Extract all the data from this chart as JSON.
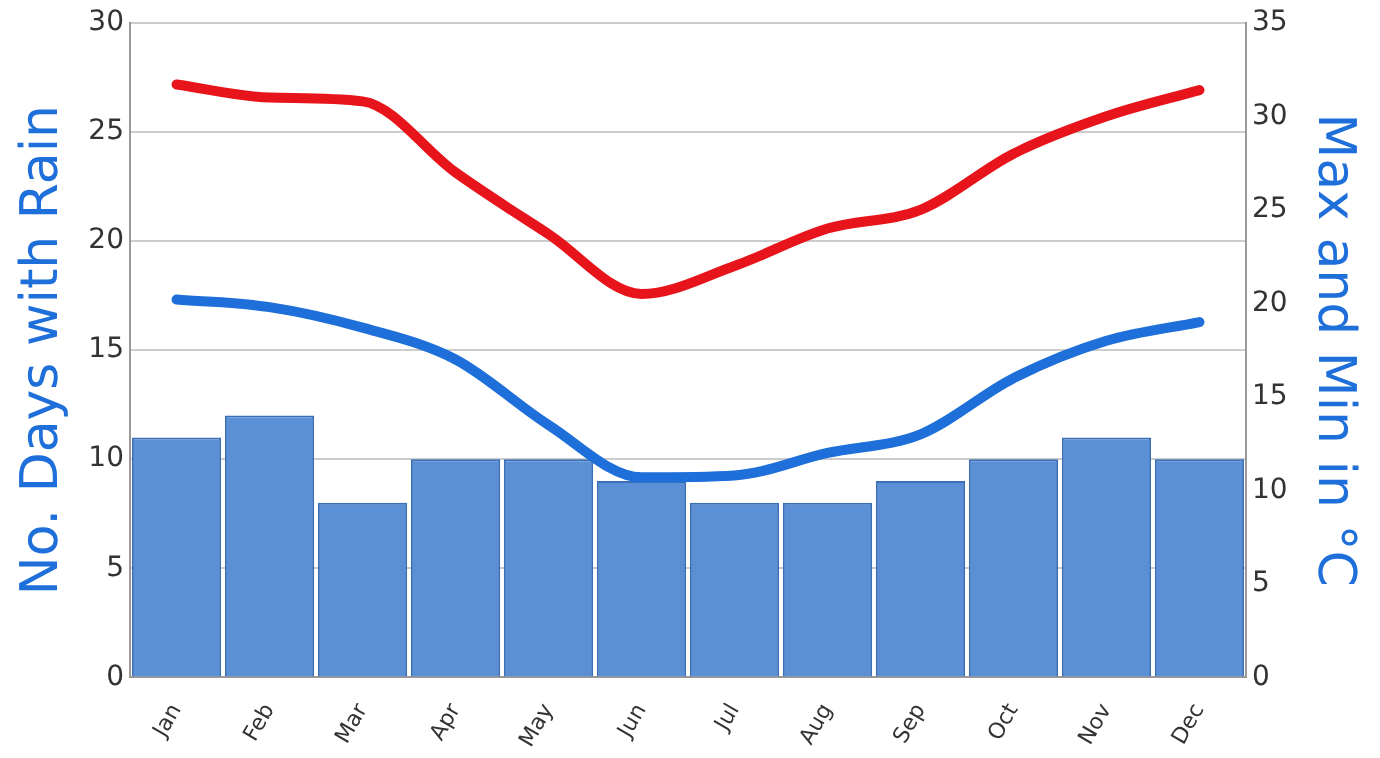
{
  "chart_data": {
    "type": "bar",
    "ylabel": "No. Days with Rain",
    "y2label": "Max and Min in °C",
    "categories": [
      "Jan",
      "Feb",
      "Mar",
      "Apr",
      "May",
      "Jun",
      "Jul",
      "Aug",
      "Sep",
      "Oct",
      "Nov",
      "Dec"
    ],
    "series": [
      {
        "color": "#5b8fd6",
        "values": [
          11,
          12,
          8,
          10,
          10,
          9,
          8,
          8,
          9,
          10,
          11,
          10
        ]
      },
      {
        "type": "line",
        "axis": "y2",
        "color": "#e8141b",
        "values": [
          31.7,
          31,
          30.8,
          27,
          23.7,
          20.5,
          22,
          24,
          25,
          28,
          30,
          31.4
        ]
      },
      {
        "type": "line",
        "axis": "y2",
        "color": "#1e6fd9",
        "values": [
          20.2,
          19.8,
          18.7,
          17,
          13.5,
          10.7,
          10.8,
          12,
          13,
          16,
          18,
          19
        ]
      }
    ],
    "ylim": [
      0,
      30
    ],
    "yticks": [
      0,
      5,
      10,
      15,
      20,
      25,
      30
    ],
    "y2lim": [
      0,
      35
    ],
    "y2ticks": [
      0,
      5,
      10,
      15,
      20,
      25,
      30,
      35
    ],
    "grid": "y",
    "legend": false,
    "marker": "none",
    "line_style": "solid"
  }
}
